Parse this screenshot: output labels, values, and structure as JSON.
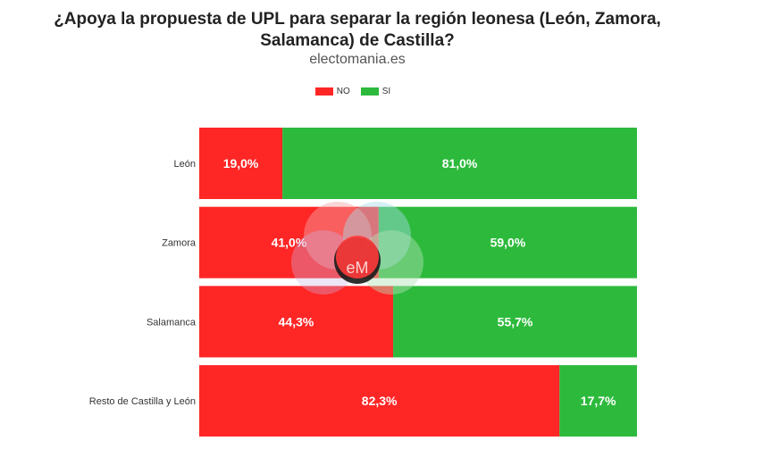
{
  "chart_data": {
    "type": "bar",
    "orientation": "horizontal",
    "stacked": true,
    "title": "¿Apoya la propuesta de UPL para separar la región leonesa (León, Zamora,\nSalamanca) de Castilla?",
    "subtitle": "electomania.es",
    "categories": [
      "León",
      "Zamora",
      "Salamanca",
      "Resto de Castilla y León"
    ],
    "series": [
      {
        "name": "NO",
        "color": "#ff2626",
        "values": [
          19.0,
          41.0,
          44.3,
          82.3
        ],
        "labels": [
          "19,0%",
          "41,0%",
          "44,3%",
          "82,3%"
        ]
      },
      {
        "name": "SI",
        "color": "#2dba3c",
        "values": [
          81.0,
          59.0,
          55.7,
          17.7
        ],
        "labels": [
          "81,0%",
          "59,0%",
          "55,7%",
          "17,7%"
        ]
      }
    ],
    "xlim": [
      0,
      100
    ],
    "legend_position": "top-center",
    "grid": false
  },
  "title_lines": [
    "¿Apoya la propuesta de UPL para separar la región leonesa (León, Zamora,",
    "Salamanca) de Castilla?"
  ],
  "watermark_text": "eM"
}
